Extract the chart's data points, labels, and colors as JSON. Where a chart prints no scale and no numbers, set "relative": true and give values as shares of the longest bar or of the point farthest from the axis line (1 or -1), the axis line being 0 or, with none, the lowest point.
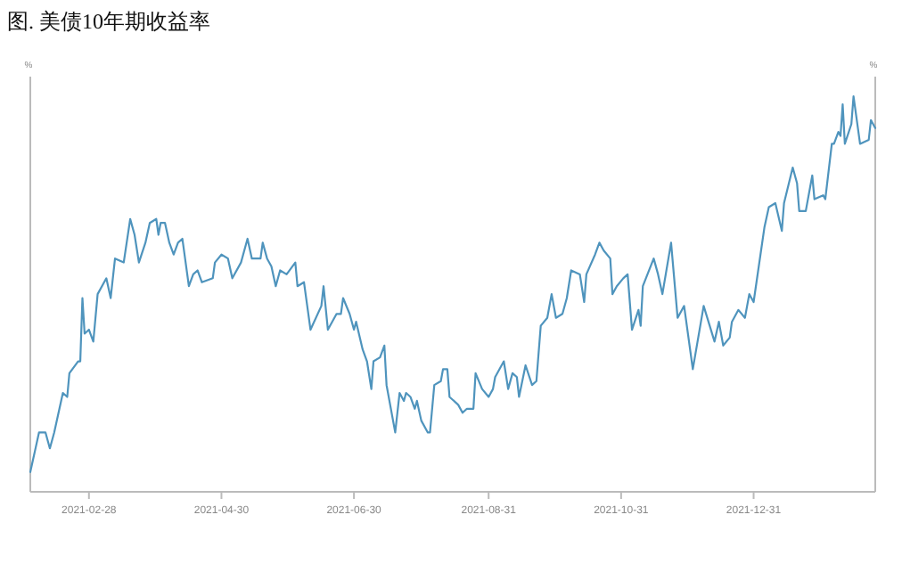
{
  "chart_data": {
    "type": "line",
    "title": "图. 美债10年期收益率",
    "ylabel": "%",
    "y2label": "%",
    "relative": true,
    "grid": false,
    "marker": "none",
    "line_style": "solid",
    "xlim": [
      "2021-02-01",
      "2022-02-25"
    ],
    "xticks": [
      "2021-02-28",
      "2021-04-30",
      "2021-06-30",
      "2021-08-31",
      "2021-10-31",
      "2021-12-31"
    ],
    "x": [
      "2021-02-01",
      "2021-02-03",
      "2021-02-05",
      "2021-02-08",
      "2021-02-10",
      "2021-02-12",
      "2021-02-16",
      "2021-02-18",
      "2021-02-19",
      "2021-02-23",
      "2021-02-24",
      "2021-02-25",
      "2021-02-26",
      "2021-02-28",
      "2021-03-02",
      "2021-03-04",
      "2021-03-08",
      "2021-03-10",
      "2021-03-12",
      "2021-03-16",
      "2021-03-19",
      "2021-03-21",
      "2021-03-23",
      "2021-03-26",
      "2021-03-28",
      "2021-03-31",
      "2021-04-01",
      "2021-04-02",
      "2021-04-04",
      "2021-04-06",
      "2021-04-08",
      "2021-04-10",
      "2021-04-12",
      "2021-04-15",
      "2021-04-17",
      "2021-04-19",
      "2021-04-21",
      "2021-04-26",
      "2021-04-27",
      "2021-04-30",
      "2021-05-03",
      "2021-05-05",
      "2021-05-09",
      "2021-05-12",
      "2021-05-14",
      "2021-05-18",
      "2021-05-19",
      "2021-05-21",
      "2021-05-23",
      "2021-05-25",
      "2021-05-27",
      "2021-05-30",
      "2021-06-03",
      "2021-06-04",
      "2021-06-07",
      "2021-06-10",
      "2021-06-15",
      "2021-06-16",
      "2021-06-18",
      "2021-06-22",
      "2021-06-24",
      "2021-06-25",
      "2021-06-28",
      "2021-06-30",
      "2021-07-01",
      "2021-07-04",
      "2021-07-06",
      "2021-07-08",
      "2021-07-09",
      "2021-07-12",
      "2021-07-14",
      "2021-07-15",
      "2021-07-19",
      "2021-07-21",
      "2021-07-23",
      "2021-07-24",
      "2021-07-26",
      "2021-07-28",
      "2021-07-29",
      "2021-07-31",
      "2021-08-03",
      "2021-08-04",
      "2021-08-06",
      "2021-08-09",
      "2021-08-10",
      "2021-08-12",
      "2021-08-13",
      "2021-08-17",
      "2021-08-19",
      "2021-08-21",
      "2021-08-24",
      "2021-08-25",
      "2021-08-28",
      "2021-08-31",
      "2021-09-02",
      "2021-09-03",
      "2021-09-07",
      "2021-09-09",
      "2021-09-11",
      "2021-09-13",
      "2021-09-14",
      "2021-09-17",
      "2021-09-20",
      "2021-09-22",
      "2021-09-24",
      "2021-09-27",
      "2021-09-29",
      "2021-10-01",
      "2021-10-04",
      "2021-10-06",
      "2021-10-08",
      "2021-10-12",
      "2021-10-14",
      "2021-10-15",
      "2021-10-19",
      "2021-10-21",
      "2021-10-23",
      "2021-10-26",
      "2021-10-27",
      "2021-10-29",
      "2021-11-01",
      "2021-11-03",
      "2021-11-05",
      "2021-11-08",
      "2021-11-09",
      "2021-11-10",
      "2021-11-15",
      "2021-11-17",
      "2021-11-19",
      "2021-11-23",
      "2021-11-26",
      "2021-11-29",
      "2021-12-01",
      "2021-12-03",
      "2021-12-08",
      "2021-12-13",
      "2021-12-15",
      "2021-12-17",
      "2021-12-20",
      "2021-12-21",
      "2021-12-24",
      "2021-12-27",
      "2021-12-29",
      "2021-12-31",
      "2022-01-05",
      "2022-01-07",
      "2022-01-10",
      "2022-01-13",
      "2022-01-14",
      "2022-01-18",
      "2022-01-20",
      "2022-01-21",
      "2022-01-24",
      "2022-01-27",
      "2022-01-28",
      "2022-02-01",
      "2022-02-02",
      "2022-02-05",
      "2022-02-06",
      "2022-02-08",
      "2022-02-09",
      "2022-02-10",
      "2022-02-11",
      "2022-02-14",
      "2022-02-15",
      "2022-02-18",
      "2022-02-22",
      "2022-02-23",
      "2022-02-25"
    ],
    "series": [
      {
        "color": "#4f94bd",
        "values": [
          0.05,
          0.1,
          0.15,
          0.15,
          0.11,
          0.15,
          0.25,
          0.24,
          0.3,
          0.33,
          0.33,
          0.49,
          0.4,
          0.41,
          0.38,
          0.5,
          0.54,
          0.49,
          0.59,
          0.58,
          0.69,
          0.65,
          0.58,
          0.63,
          0.68,
          0.69,
          0.65,
          0.68,
          0.68,
          0.63,
          0.6,
          0.63,
          0.64,
          0.52,
          0.55,
          0.56,
          0.53,
          0.54,
          0.58,
          0.6,
          0.59,
          0.54,
          0.58,
          0.64,
          0.59,
          0.59,
          0.63,
          0.59,
          0.57,
          0.52,
          0.56,
          0.55,
          0.58,
          0.52,
          0.53,
          0.41,
          0.47,
          0.52,
          0.41,
          0.45,
          0.45,
          0.49,
          0.45,
          0.41,
          0.43,
          0.36,
          0.33,
          0.26,
          0.33,
          0.34,
          0.37,
          0.27,
          0.15,
          0.25,
          0.23,
          0.25,
          0.24,
          0.21,
          0.23,
          0.18,
          0.15,
          0.15,
          0.27,
          0.28,
          0.31,
          0.31,
          0.24,
          0.22,
          0.2,
          0.21,
          0.21,
          0.3,
          0.26,
          0.24,
          0.26,
          0.29,
          0.33,
          0.26,
          0.3,
          0.29,
          0.24,
          0.32,
          0.27,
          0.28,
          0.42,
          0.44,
          0.5,
          0.44,
          0.45,
          0.49,
          0.56,
          0.55,
          0.48,
          0.55,
          0.6,
          0.63,
          0.61,
          0.59,
          0.5,
          0.52,
          0.54,
          0.55,
          0.41,
          0.46,
          0.42,
          0.52,
          0.59,
          0.55,
          0.5,
          0.63,
          0.44,
          0.47,
          0.39,
          0.31,
          0.47,
          0.38,
          0.43,
          0.37,
          0.39,
          0.43,
          0.46,
          0.44,
          0.5,
          0.48,
          0.67,
          0.72,
          0.73,
          0.66,
          0.73,
          0.82,
          0.78,
          0.71,
          0.71,
          0.8,
          0.74,
          0.75,
          0.74,
          0.88,
          0.88,
          0.91,
          0.9,
          0.98,
          0.88,
          0.93,
          1,
          0.88,
          0.89,
          0.94,
          0.92
        ]
      }
    ]
  }
}
